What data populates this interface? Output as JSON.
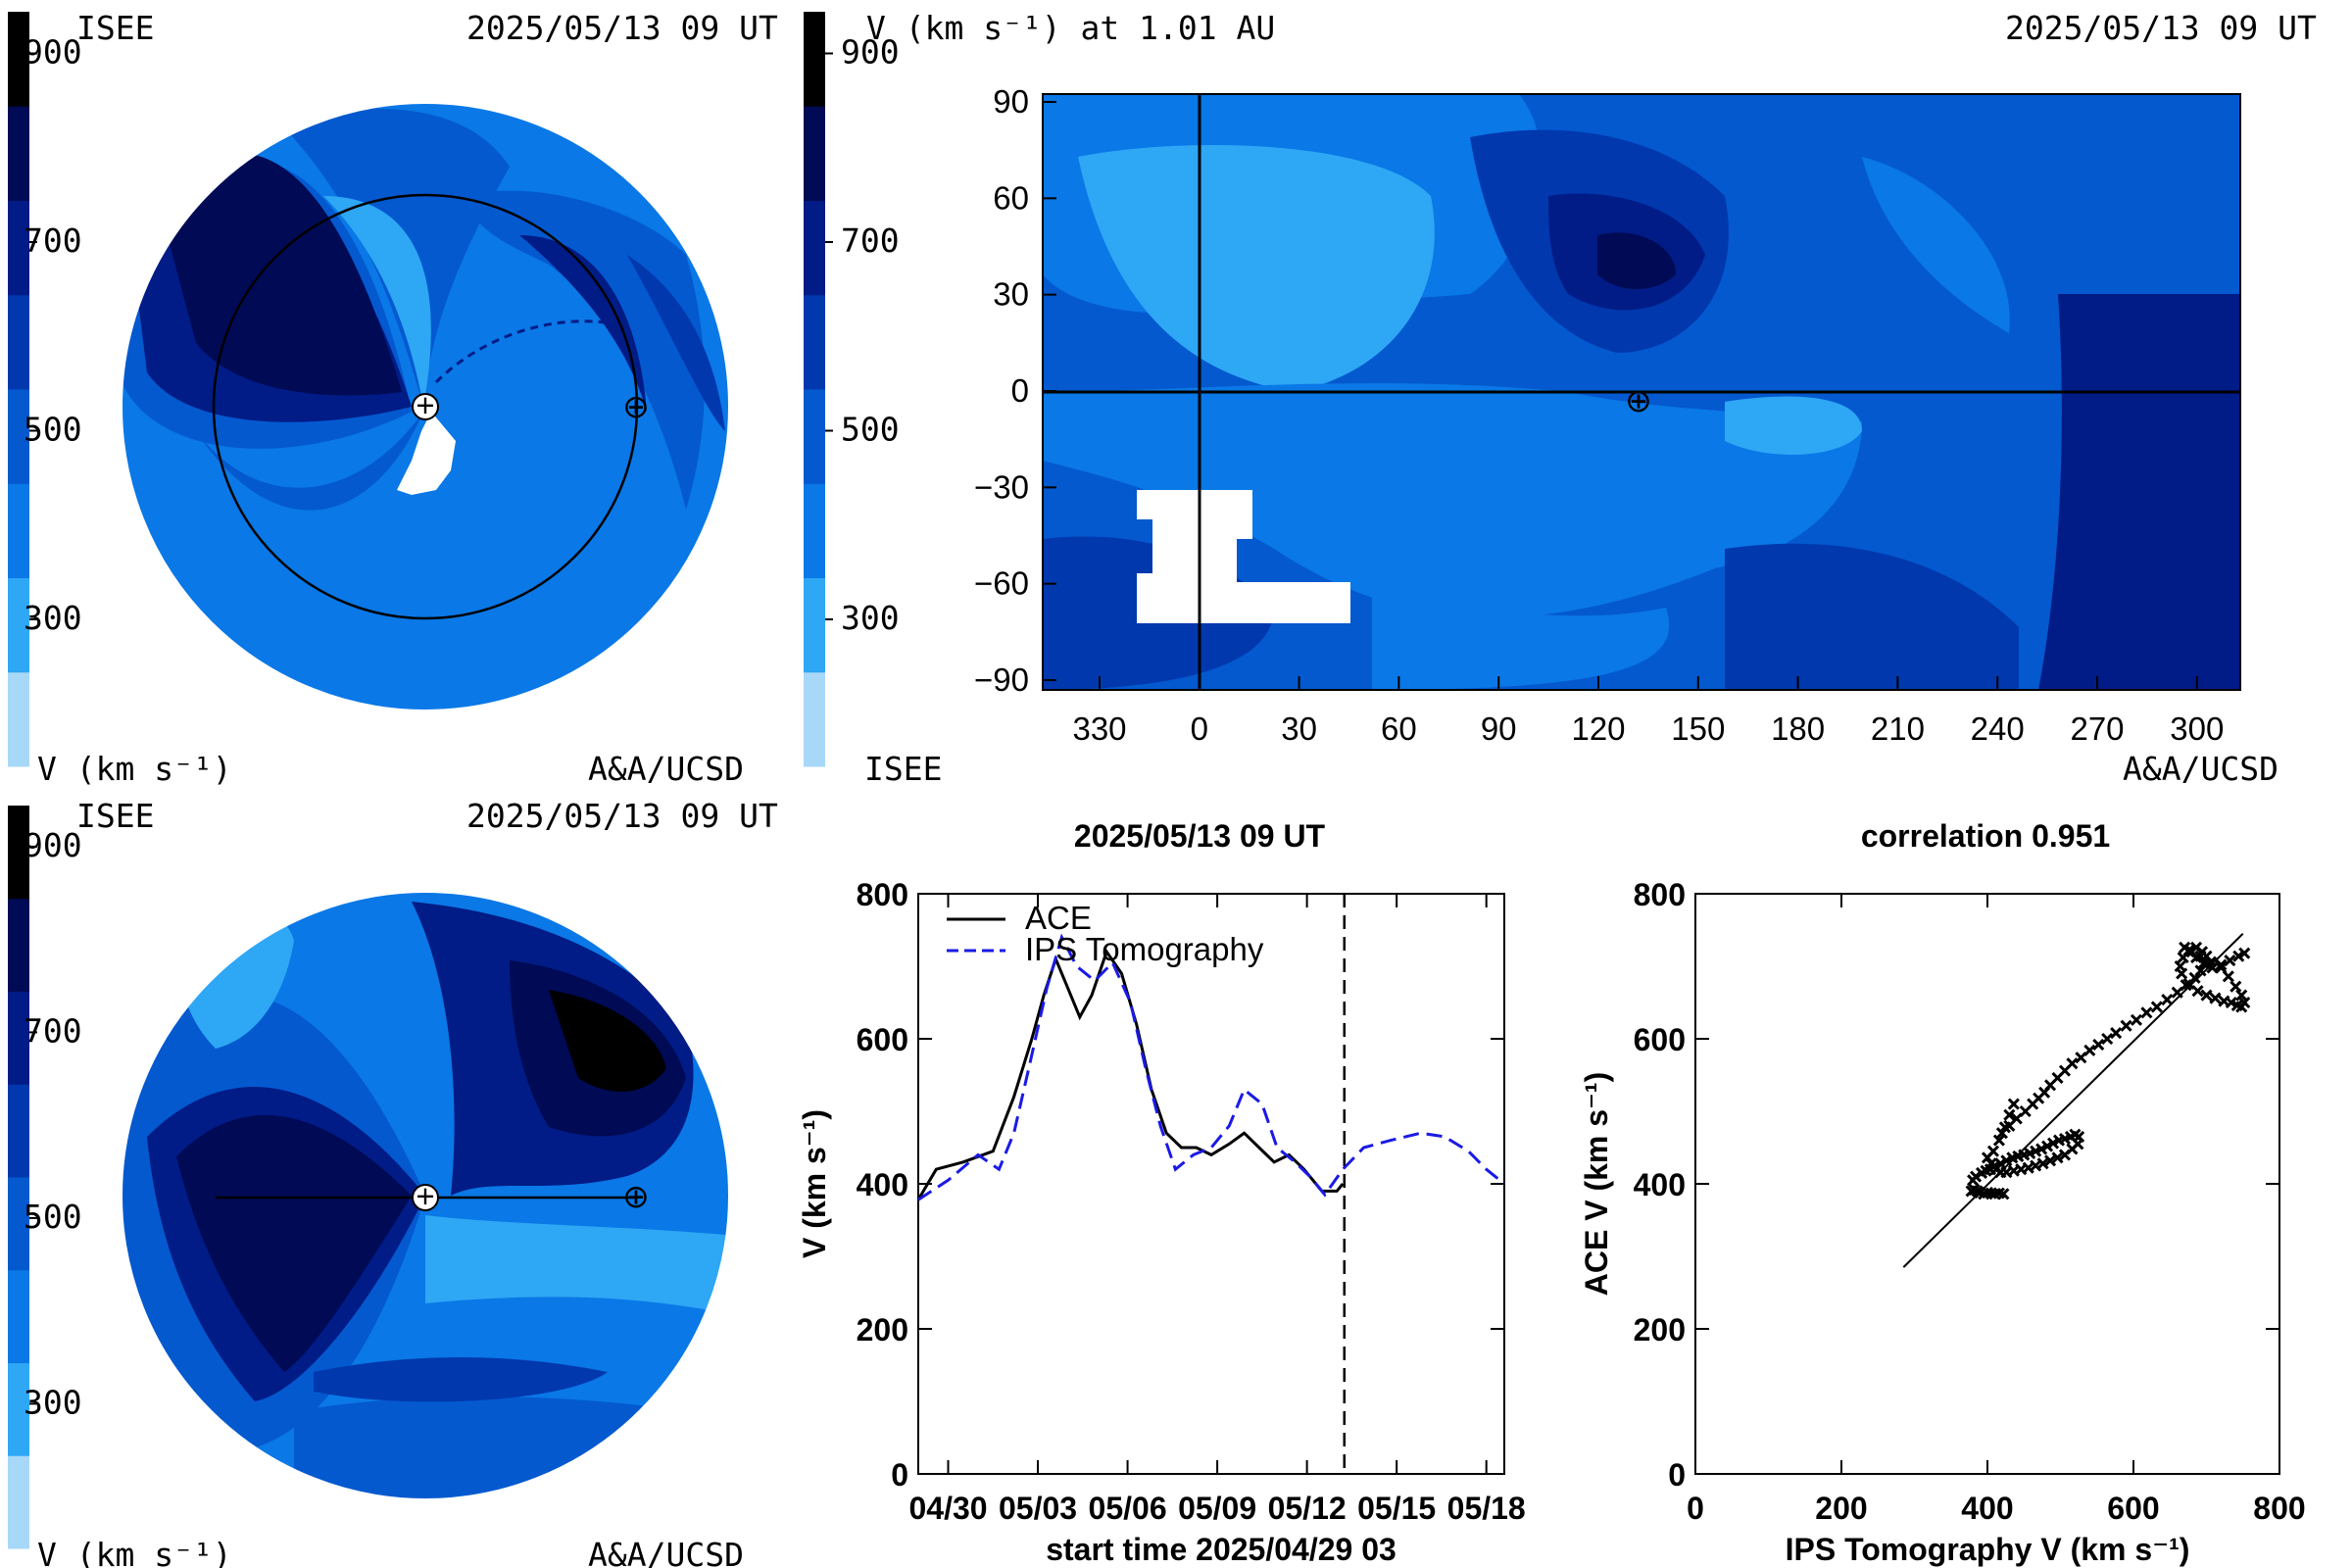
{
  "colors": {
    "scale": [
      "#a8d8f8",
      "#2ea7f5",
      "#0a78e6",
      "#0459cf",
      "#0138ae",
      "#011c86",
      "#000a55",
      "#000000"
    ],
    "ace_line": "#000000",
    "ips_line": "#1a1ae6"
  },
  "colorbar_ticks": [
    "900",
    "700",
    "500",
    "300"
  ],
  "panel_top_left": {
    "source": "ISEE",
    "time": "2025/05/13 09 UT",
    "unit_label": "V (km s⁻¹)",
    "credit": "A&A/UCSD",
    "sun_symbol": "+",
    "earth_symbol": "⊕"
  },
  "panel_top_right": {
    "title": "V (km s⁻¹) at 1.01 AU",
    "time": "2025/05/13 09 UT",
    "source": "ISEE",
    "credit": "A&A/UCSD",
    "earth_symbol": "⊕",
    "x_ticks": [
      "330",
      "0",
      "30",
      "60",
      "90",
      "120",
      "150",
      "180",
      "210",
      "240",
      "270",
      "300"
    ],
    "y_ticks": [
      "90",
      "60",
      "30",
      "0",
      "−30",
      "−60",
      "−90"
    ]
  },
  "panel_bottom_left": {
    "source": "ISEE",
    "time": "2025/05/13 09 UT",
    "unit_label": "V (km s⁻¹)",
    "credit": "A&A/UCSD",
    "sun_symbol": "+",
    "earth_symbol": "⊕"
  },
  "chart_data": [
    {
      "type": "line",
      "title": "2025/05/13 09 UT",
      "xlabel": "start time 2025/04/29 03",
      "ylabel": "V (km s⁻¹)",
      "x_ticks": [
        "04/30",
        "05/03",
        "05/06",
        "05/09",
        "05/12",
        "05/15",
        "05/18"
      ],
      "x_tick_days": [
        1,
        4,
        7,
        10,
        13,
        16,
        19
      ],
      "xlim_days": [
        0,
        19.6
      ],
      "ylim": [
        0,
        800
      ],
      "y_ticks": [
        0,
        200,
        400,
        600,
        800
      ],
      "now_marker_day": 14.25,
      "series": [
        {
          "name": "ACE",
          "x": [
            0,
            0.6,
            1.5,
            2.5,
            3.2,
            3.8,
            4.2,
            4.6,
            5.0,
            5.4,
            5.8,
            6.3,
            6.8,
            7.3,
            7.8,
            8.3,
            8.8,
            9.3,
            9.8,
            10.4,
            10.9,
            11.4,
            11.9,
            12.4,
            12.9,
            13.5,
            14.0,
            14.2
          ],
          "values": [
            378,
            420,
            430,
            445,
            520,
            600,
            660,
            710,
            670,
            630,
            660,
            720,
            690,
            620,
            530,
            470,
            450,
            450,
            440,
            455,
            470,
            450,
            430,
            440,
            420,
            390,
            390,
            400
          ]
        },
        {
          "name": "IPS Tomography",
          "x": [
            0,
            1.0,
            2.0,
            2.7,
            3.2,
            3.7,
            4.3,
            4.8,
            5.3,
            5.9,
            6.5,
            7.1,
            7.6,
            8.1,
            8.6,
            9.2,
            9.8,
            10.4,
            10.9,
            11.5,
            12.0,
            12.6,
            13.1,
            13.6,
            14.2,
            14.9,
            15.8,
            16.8,
            17.6,
            18.4,
            19.0,
            19.6
          ],
          "values": [
            378,
            405,
            440,
            420,
            470,
            560,
            670,
            740,
            700,
            680,
            705,
            650,
            560,
            480,
            420,
            440,
            450,
            480,
            530,
            510,
            450,
            430,
            410,
            385,
            420,
            450,
            460,
            470,
            465,
            445,
            420,
            400
          ]
        }
      ]
    },
    {
      "type": "scatter",
      "title": "correlation 0.951",
      "xlabel": "IPS Tomography V (km s⁻¹)",
      "ylabel": "ACE V (km s⁻¹)",
      "xlim": [
        0,
        800
      ],
      "ylim": [
        0,
        800
      ],
      "x_ticks": [
        0,
        200,
        400,
        600,
        800
      ],
      "y_ticks": [
        0,
        200,
        400,
        600,
        800
      ],
      "fit_line": {
        "x": [
          285,
          750
        ],
        "y": [
          285,
          745
        ]
      },
      "points": {
        "x": [
          378,
          382,
          386,
          390,
          395,
          400,
          405,
          410,
          416,
          422,
          380,
          384,
          392,
          398,
          404,
          410,
          418,
          426,
          434,
          442,
          450,
          458,
          466,
          474,
          482,
          490,
          498,
          506,
          514,
          520,
          525,
          524,
          516,
          506,
          496,
          486,
          476,
          466,
          456,
          446,
          436,
          426,
          418,
          412,
          405,
          400,
          408,
          416,
          424,
          430,
          436,
          420,
          430,
          440,
          452,
          462,
          470,
          478,
          486,
          496,
          506,
          516,
          528,
          540,
          552,
          564,
          576,
          590,
          604,
          618,
          632,
          646,
          660,
          672,
          684,
          692,
          698,
          700,
          694,
          686,
          676,
          668,
          664,
          666,
          676,
          688,
          700,
          712,
          724,
          734,
          742,
          748,
          752,
          748,
          740,
          730,
          720,
          706,
          692,
          680,
          670,
          676,
          686,
          696,
          708,
          720,
          732,
          744,
          752
        ],
        "y": [
          390,
          392,
          390,
          388,
          386,
          388,
          387,
          386,
          387,
          386,
          405,
          410,
          415,
          418,
          420,
          425,
          428,
          432,
          436,
          438,
          440,
          442,
          445,
          448,
          452,
          456,
          460,
          462,
          465,
          468,
          465,
          455,
          448,
          440,
          436,
          432,
          428,
          425,
          422,
          420,
          418,
          416,
          416,
          420,
          428,
          436,
          445,
          460,
          478,
          495,
          510,
          470,
          480,
          490,
          500,
          510,
          518,
          526,
          536,
          546,
          556,
          566,
          574,
          584,
          592,
          600,
          608,
          618,
          626,
          636,
          644,
          654,
          664,
          674,
          684,
          694,
          704,
          714,
          720,
          726,
          722,
          712,
          700,
          690,
          676,
          666,
          660,
          656,
          652,
          650,
          646,
          644,
          650,
          660,
          672,
          686,
          698,
          706,
          714,
          720,
          726,
          720,
          712,
          704,
          698,
          702,
          708,
          714,
          718
        ]
      }
    }
  ]
}
